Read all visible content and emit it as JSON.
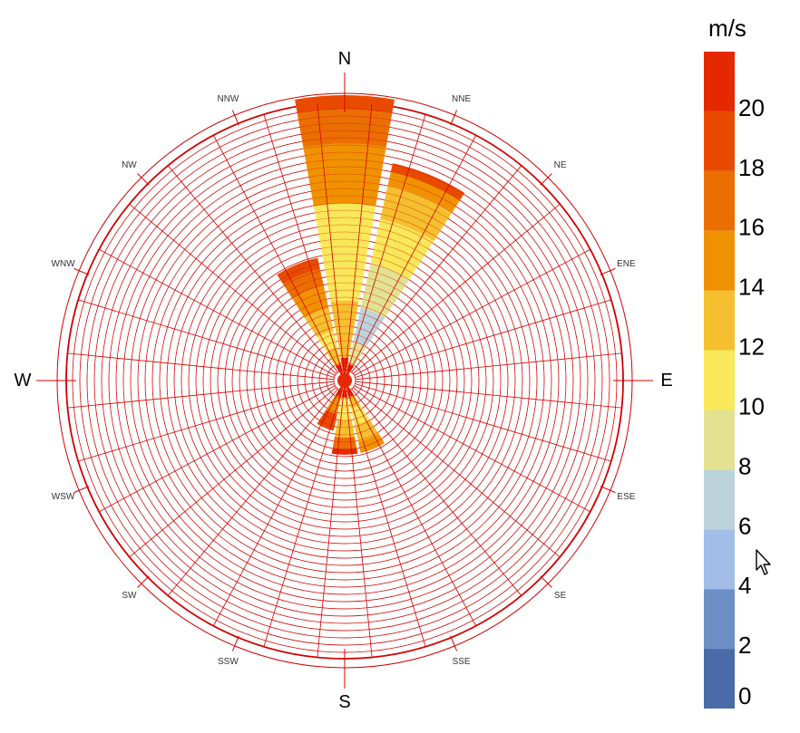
{
  "chart_data": {
    "type": "windrose",
    "directions": [
      "N",
      "NNE",
      "NE",
      "ENE",
      "E",
      "ESE",
      "SE",
      "SSE",
      "S",
      "SSW",
      "SW",
      "WSW",
      "W",
      "WNW",
      "NW",
      "NNW"
    ],
    "major_directions": [
      "N",
      "E",
      "S",
      "W"
    ],
    "colorbar": {
      "unit": "m/s",
      "ticks": [
        "0",
        "2",
        "4",
        "6",
        "8",
        "10",
        "12",
        "14",
        "16",
        "18",
        "20"
      ],
      "bands": [
        {
          "from": 0,
          "to": 2,
          "color": "#4a6aa8"
        },
        {
          "from": 2,
          "to": 4,
          "color": "#6e8fc6"
        },
        {
          "from": 4,
          "to": 6,
          "color": "#a2bde8"
        },
        {
          "from": 6,
          "to": 8,
          "color": "#bcd3dc"
        },
        {
          "from": 8,
          "to": 10,
          "color": "#e2e290"
        },
        {
          "from": 10,
          "to": 12,
          "color": "#f9e859"
        },
        {
          "from": 12,
          "to": 14,
          "color": "#f5c02f"
        },
        {
          "from": 14,
          "to": 16,
          "color": "#f09200"
        },
        {
          "from": 16,
          "to": 18,
          "color": "#ea6e00"
        },
        {
          "from": 18,
          "to": 20,
          "color": "#e84b00"
        },
        {
          "from": 20,
          "to": 22,
          "color": "#e62800"
        }
      ]
    },
    "rmax": 100,
    "sectors": [
      {
        "dir": "N",
        "segments": [
          {
            "to": 8,
            "band": 10
          },
          {
            "to": 28,
            "band": 6
          },
          {
            "to": 62,
            "band": 5
          },
          {
            "to": 83,
            "band": 7
          },
          {
            "to": 95,
            "band": 8
          },
          {
            "to": 100,
            "band": 9
          }
        ]
      },
      {
        "dir": "NNE",
        "segments": [
          {
            "to": 6,
            "band": 10
          },
          {
            "to": 14,
            "band": 4
          },
          {
            "to": 26,
            "band": 3
          },
          {
            "to": 42,
            "band": 4
          },
          {
            "to": 58,
            "band": 5
          },
          {
            "to": 70,
            "band": 6
          },
          {
            "to": 75,
            "band": 7
          },
          {
            "to": 78,
            "band": 9
          }
        ]
      },
      {
        "dir": "NE",
        "segments": []
      },
      {
        "dir": "ENE",
        "segments": []
      },
      {
        "dir": "E",
        "segments": []
      },
      {
        "dir": "ESE",
        "segments": []
      },
      {
        "dir": "SE",
        "segments": []
      },
      {
        "dir": "SSE",
        "segments": [
          {
            "to": 6,
            "band": 10
          },
          {
            "to": 10,
            "band": 6
          },
          {
            "to": 16,
            "band": 5
          },
          {
            "to": 22,
            "band": 6
          },
          {
            "to": 26,
            "band": 7
          }
        ]
      },
      {
        "dir": "S",
        "segments": [
          {
            "to": 6,
            "band": 10
          },
          {
            "to": 14,
            "band": 5
          },
          {
            "to": 20,
            "band": 6
          },
          {
            "to": 24,
            "band": 8
          },
          {
            "to": 26,
            "band": 10
          }
        ]
      },
      {
        "dir": "SSW",
        "segments": [
          {
            "to": 6,
            "band": 10
          },
          {
            "to": 12,
            "band": 7
          },
          {
            "to": 18,
            "band": 9
          }
        ]
      },
      {
        "dir": "SW",
        "segments": []
      },
      {
        "dir": "WSW",
        "segments": []
      },
      {
        "dir": "W",
        "segments": []
      },
      {
        "dir": "WNW",
        "segments": []
      },
      {
        "dir": "NW",
        "segments": []
      },
      {
        "dir": "NNW",
        "segments": [
          {
            "to": 6,
            "band": 10
          },
          {
            "to": 12,
            "band": 6
          },
          {
            "to": 18,
            "band": 5
          },
          {
            "to": 26,
            "band": 6
          },
          {
            "to": 34,
            "band": 7
          },
          {
            "to": 40,
            "band": 8
          },
          {
            "to": 44,
            "band": 9
          }
        ]
      }
    ],
    "grid": true,
    "legend_position": "right"
  }
}
